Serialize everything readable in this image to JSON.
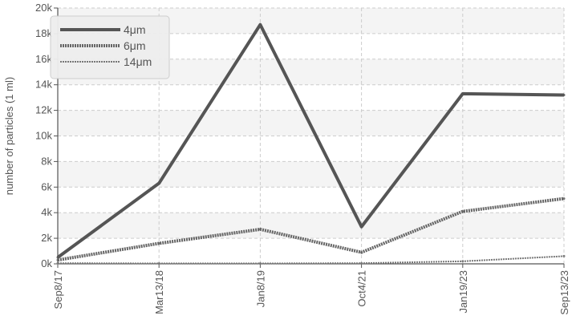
{
  "chart_data": {
    "type": "line",
    "categories": [
      "Sep8/17",
      "Mar13/18",
      "Jan8/19",
      "Oct4/21",
      "Jan19/23",
      "Sep13/23"
    ],
    "series": [
      {
        "name": "4μm",
        "values": [
          500,
          6300,
          18700,
          2900,
          13300,
          13200
        ],
        "color": "#555555",
        "style": "solid"
      },
      {
        "name": "6μm",
        "values": [
          300,
          1600,
          2700,
          900,
          4100,
          5100
        ],
        "color": "#666666",
        "style": "dotted-thick"
      },
      {
        "name": "14μm",
        "values": [
          50,
          30,
          30,
          50,
          200,
          600
        ],
        "color": "#777777",
        "style": "dotted-thin"
      }
    ],
    "xlabel": "",
    "ylabel": "number of particles (1 ml)",
    "ylim": [
      0,
      20000
    ],
    "yticks": [
      {
        "value": 0,
        "label": "0k"
      },
      {
        "value": 2000,
        "label": "2k"
      },
      {
        "value": 4000,
        "label": "4k"
      },
      {
        "value": 6000,
        "label": "6k"
      },
      {
        "value": 8000,
        "label": "8k"
      },
      {
        "value": 10000,
        "label": "10k"
      },
      {
        "value": 12000,
        "label": "12k"
      },
      {
        "value": 14000,
        "label": "14k"
      },
      {
        "value": 16000,
        "label": "16k"
      },
      {
        "value": 18000,
        "label": "18k"
      },
      {
        "value": 20000,
        "label": "20k"
      }
    ],
    "grid": true,
    "legend_position": "top-left",
    "colors": {
      "band": "#f4f4f4",
      "grid": "#cccccc",
      "axis": "#555555"
    }
  }
}
